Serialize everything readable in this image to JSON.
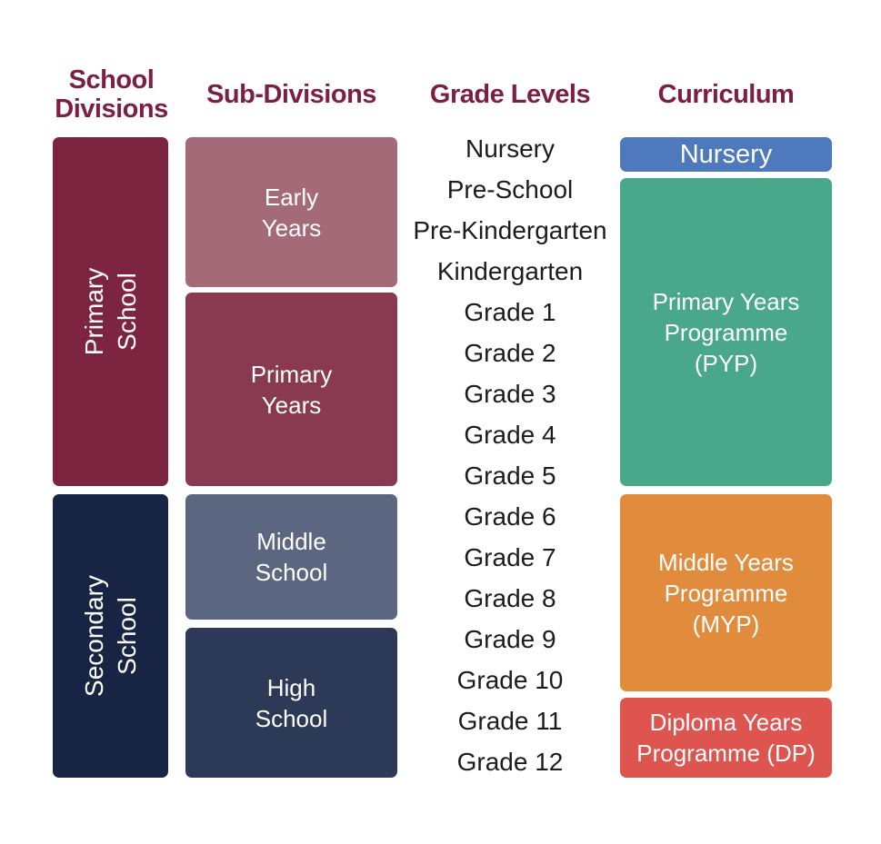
{
  "headers": [
    [
      "School",
      "Divisions"
    ],
    [
      "Sub-Divisions"
    ],
    [
      "Grade Levels"
    ],
    [
      "Curriculum"
    ]
  ],
  "divisions": [
    [
      "Primary",
      "School"
    ],
    [
      "Secondary",
      "School"
    ]
  ],
  "subdivisions": [
    [
      "Early",
      "Years"
    ],
    [
      "Primary",
      "Years"
    ],
    [
      "Middle",
      "School"
    ],
    [
      "High",
      "School"
    ]
  ],
  "grades": [
    "Nursery",
    "Pre-School",
    "Pre-Kindergarten",
    "Kindergarten",
    "Grade 1",
    "Grade 2",
    "Grade 3",
    "Grade 4",
    "Grade 5",
    "Grade 6",
    "Grade 7",
    "Grade 8",
    "Grade 9",
    "Grade 10",
    "Grade 11",
    "Grade 12"
  ],
  "curriculum": [
    [
      "Nursery"
    ],
    [
      "Primary Years",
      "Programme",
      "(PYP)"
    ],
    [
      "Middle Years",
      "Programme",
      "(MYP)"
    ],
    [
      "Diploma Years",
      "Programme (DP)"
    ]
  ]
}
